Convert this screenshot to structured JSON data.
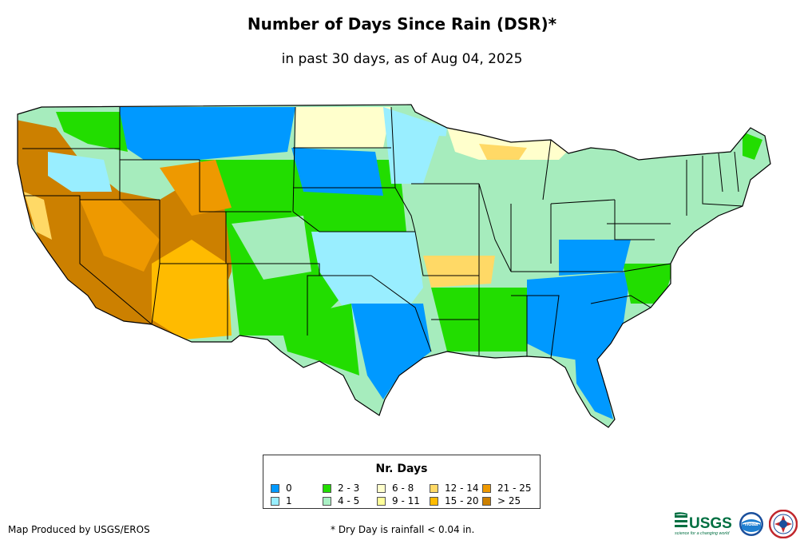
{
  "header": {
    "title": "Number of Days Since Rain (DSR)*",
    "subtitle": "in past 30 days, as of Aug 04, 2025"
  },
  "map": {
    "region": "Contiguous United States",
    "colors": {
      "background": "#a6ecbd",
      "state_border": "#000000"
    }
  },
  "legend": {
    "title": "Nr. Days",
    "items": [
      {
        "label": "0",
        "color": "#0099ff"
      },
      {
        "label": "1",
        "color": "#99eeff"
      },
      {
        "label": "2 - 3",
        "color": "#22dd00"
      },
      {
        "label": "4 - 5",
        "color": "#aaf0c4"
      },
      {
        "label": "6 - 8",
        "color": "#ffffcc"
      },
      {
        "label": "9 - 11",
        "color": "#ffff99"
      },
      {
        "label": "12 - 14",
        "color": "#ffd966"
      },
      {
        "label": "15 - 20",
        "color": "#ffbb00"
      },
      {
        "label": "21 - 25",
        "color": "#ee9900"
      },
      {
        "label": "> 25",
        "color": "#cc8000"
      }
    ]
  },
  "footer": {
    "credit": "Map Produced by USGS/EROS",
    "footnote": "* Dry Day is rainfall < 0.04 in.",
    "logos": {
      "usgs_text": "USGS",
      "usgs_tagline": "science for a changing world",
      "noaa_text": "noaa"
    }
  }
}
